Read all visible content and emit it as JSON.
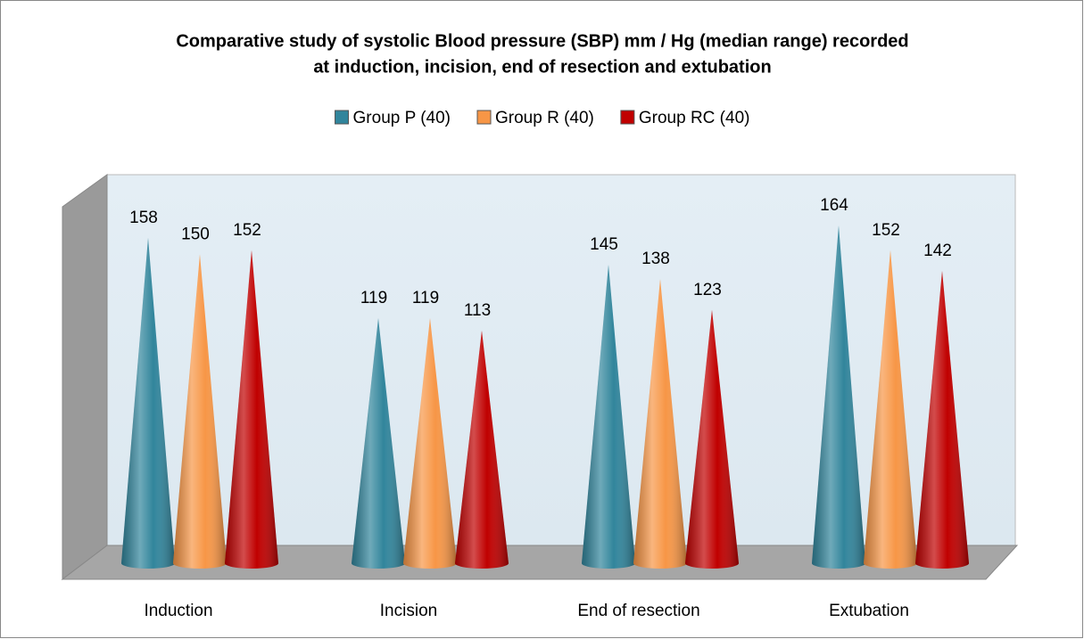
{
  "chart_data": {
    "type": "cone-bar",
    "title": [
      "Comparative study of systolic Blood pressure (SBP) mm / Hg (median range) recorded",
      "at induction, incision, end of resection and extubation"
    ],
    "categories": [
      "Induction",
      "Incision",
      "End of resection",
      "Extubation"
    ],
    "series": [
      {
        "name": "Group P (40)",
        "color": "#31859c",
        "values": [
          158,
          119,
          145,
          164
        ]
      },
      {
        "name": "Group R (40)",
        "color": "#f79646",
        "values": [
          150,
          119,
          138,
          152
        ]
      },
      {
        "name": "Group RC (40)",
        "color": "#c00000",
        "values": [
          152,
          113,
          123,
          142
        ]
      }
    ],
    "ylim": [
      0,
      190
    ]
  }
}
